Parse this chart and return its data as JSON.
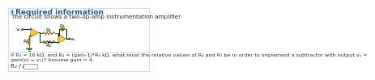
{
  "bg_color": "#ffffff",
  "border_color": "#b8d0e8",
  "header_text": "Required information",
  "header_color": "#1a5fa8",
  "subtext": "The circuit shows a two-op-amp instrumentation amplifier.",
  "subtext_color": "#333333",
  "question_text": "If R₃ = 16 kΩ, and R₄ = (gain-1)*R₃ kΩ, what must the relative values of R₂ and R₁ be in order to implement a subtractor with output vₒ =\ngain(v₂ − v₁)? Assume gain = 4.",
  "answer_label": "R₂ / R₁ =",
  "info_icon_color": "#1a5fa8",
  "info_icon_bg": "#d0e8f8",
  "opamp_fill": "#f5c842",
  "opamp_stroke": "#c8a010",
  "resistor_color": "#7a6010",
  "wire_color": "#222222",
  "ground_color": "#228822",
  "label_color": "#111111",
  "v1_label": "v₁",
  "v2_label": "v₂",
  "vo_label": "vₒ",
  "R1_label": "R₁",
  "R2_label": "R₂",
  "R3_label": "R₃",
  "R4_label": "R₄",
  "font_size_header": 6.5,
  "font_size_sub": 5.2,
  "font_size_circuit": 4.5,
  "font_size_question": 4.6,
  "font_size_answer": 5.2
}
